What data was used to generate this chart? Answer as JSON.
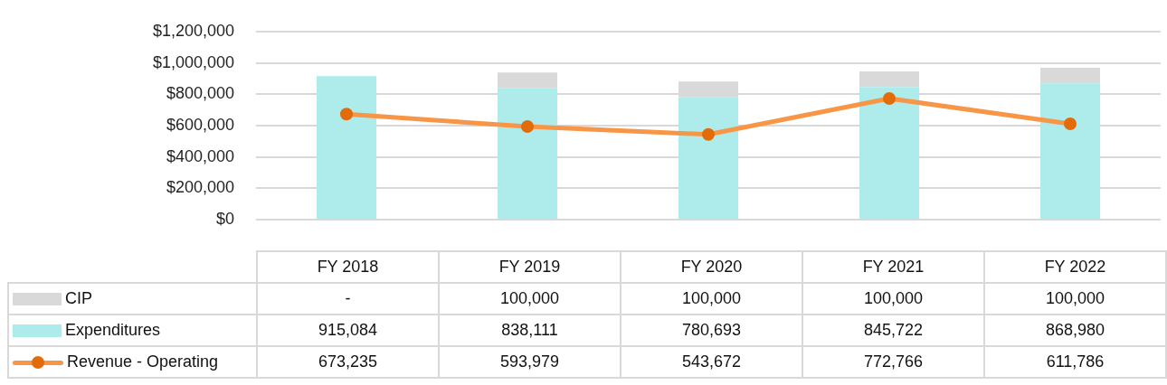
{
  "chart_data": {
    "type": "bar",
    "stacked": true,
    "categories": [
      "FY 2018",
      "FY 2019",
      "FY 2020",
      "FY 2021",
      "FY 2022"
    ],
    "series": [
      {
        "name": "Expenditures",
        "color": "#aeecec",
        "values": [
          915084,
          838111,
          780693,
          845722,
          868980
        ],
        "value_labels": [
          "915,084",
          "838,111",
          "780,693",
          "845,722",
          "868,980"
        ]
      },
      {
        "name": "CIP",
        "color": "#d9d9d9",
        "values": [
          0,
          100000,
          100000,
          100000,
          100000
        ],
        "value_labels": [
          "-",
          "100,000",
          "100,000",
          "100,000",
          "100,000"
        ]
      },
      {
        "name": "Revenue - Operating",
        "type": "line",
        "color": "#f79646",
        "marker": "circle",
        "line_style": "solid",
        "values": [
          673235,
          593979,
          543672,
          772766,
          611786
        ],
        "value_labels": [
          "673,235",
          "593,979",
          "543,672",
          "772,766",
          "611,786"
        ]
      }
    ],
    "ylim": [
      0,
      1200000
    ],
    "yticks": [
      {
        "value": 0,
        "label": "$0"
      },
      {
        "value": 200000,
        "label": "$200,000"
      },
      {
        "value": 400000,
        "label": "$400,000"
      },
      {
        "value": 600000,
        "label": "$600,000"
      },
      {
        "value": 800000,
        "label": "$800,000"
      },
      {
        "value": 1000000,
        "label": "$1,000,000"
      },
      {
        "value": 1200000,
        "label": "$1,200,000"
      }
    ],
    "grid": "y",
    "legend": "bottom"
  }
}
